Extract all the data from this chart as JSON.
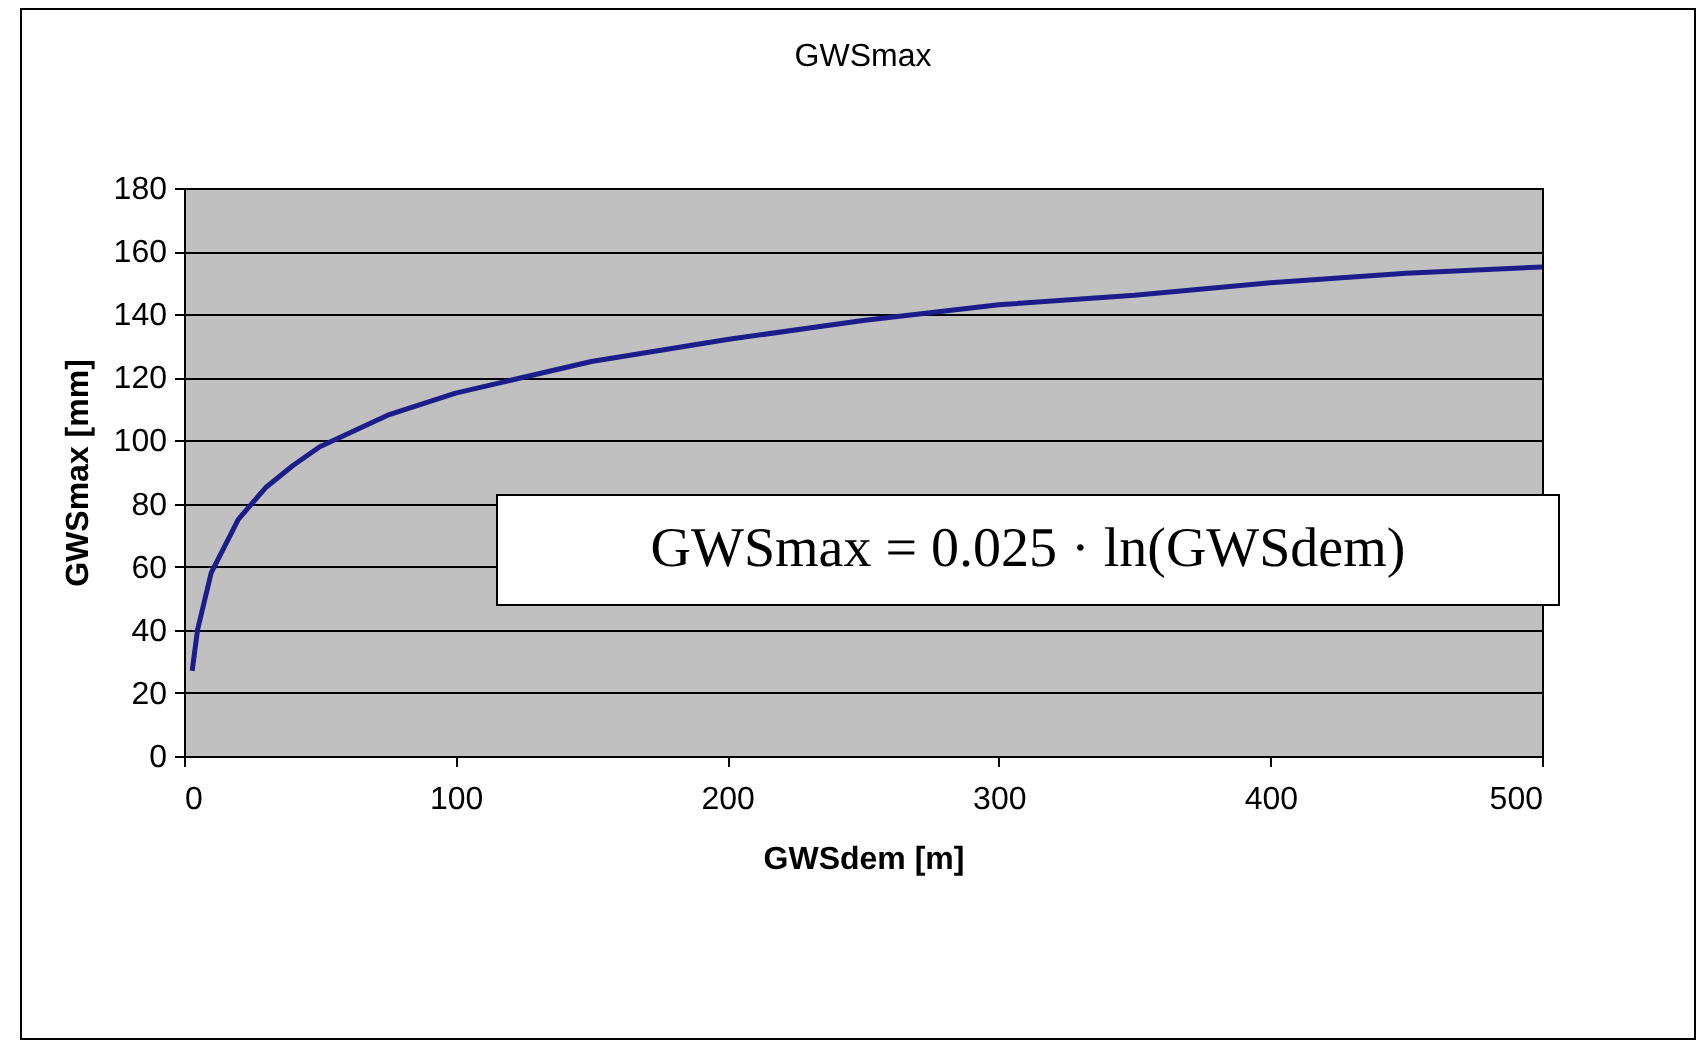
{
  "chart_data": {
    "type": "line",
    "title": "GWSmax",
    "xlabel": "GWSdem [m]",
    "ylabel": "GWSmax [mm]",
    "x": [
      3,
      5,
      10,
      20,
      30,
      40,
      50,
      75,
      100,
      150,
      200,
      250,
      300,
      350,
      400,
      450,
      500
    ],
    "series": [
      {
        "color": "#1c1c8a",
        "values": [
          27,
          40,
          58,
          75,
          85,
          92,
          98,
          108,
          115,
          125,
          132,
          138,
          143,
          146,
          150,
          153,
          155
        ]
      }
    ],
    "xlim": [
      0,
      500
    ],
    "xticks": [
      0,
      100,
      200,
      300,
      400,
      500
    ],
    "ylim": [
      0,
      180
    ],
    "yticks": [
      0,
      20,
      40,
      60,
      80,
      100,
      120,
      140,
      160,
      180
    ],
    "grid": "y",
    "marker": "none",
    "line_style": "solid",
    "annotations": [
      "GWSmax = 0.025 · ln(GWSdem)"
    ]
  }
}
